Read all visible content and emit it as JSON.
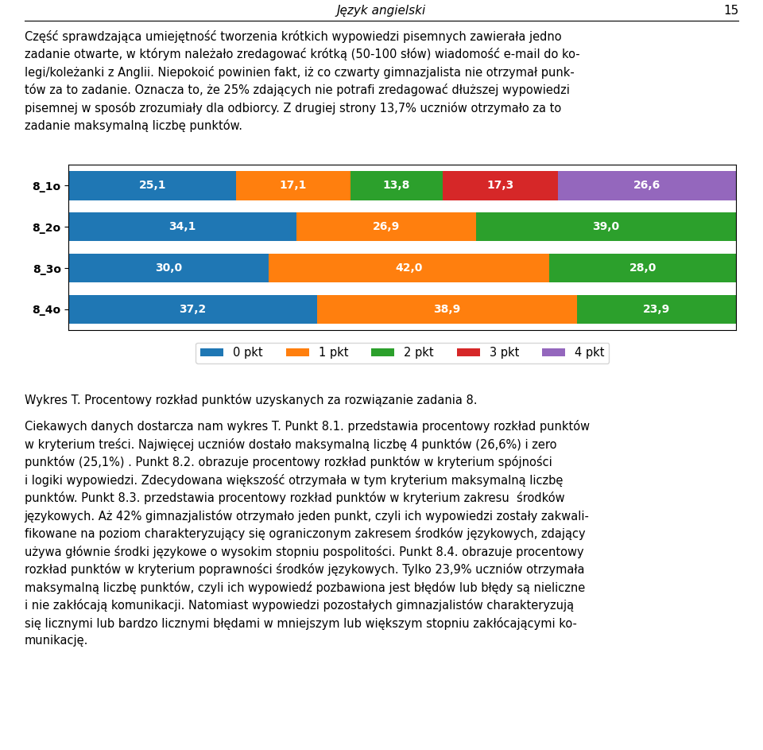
{
  "chart_data": {
    "type": "bar",
    "orientation": "horizontal",
    "stacked": true,
    "data_labels": true,
    "tick_labels": "y",
    "legend": "upper center",
    "grid": false,
    "title": "Wykres T. Procentowy rozkład punktów uzyskanych za rozwiązanie zadania 8.",
    "categories": [
      "8_1o",
      "8_2o",
      "8_3o",
      "8_4o"
    ],
    "xlim": [
      0,
      100
    ],
    "series": [
      {
        "name": "0 pkt",
        "values": [
          25.1,
          34.1,
          30.0,
          37.2
        ],
        "value_labels": [
          "25,1",
          "34,1",
          "30,0",
          "37,2"
        ]
      },
      {
        "name": "1 pkt",
        "values": [
          17.1,
          26.9,
          42.0,
          38.9
        ],
        "value_labels": [
          "17,1",
          "26,9",
          "42,0",
          "38,9"
        ]
      },
      {
        "name": "2 pkt",
        "values": [
          13.8,
          39.0,
          28.0,
          23.9
        ],
        "value_labels": [
          "13,8",
          "39,0",
          "28,0",
          "23,9"
        ]
      },
      {
        "name": "3 pkt",
        "values": [
          17.3,
          0.0,
          0.0,
          0.0
        ],
        "value_labels": [
          "17,3",
          null,
          null,
          null
        ]
      },
      {
        "name": "4 pkt",
        "values": [
          26.6,
          0.0,
          0.0,
          0.0
        ],
        "value_labels": [
          "26,6",
          null,
          null,
          null
        ]
      }
    ],
    "annotations": [
      "Język angielski",
      "15",
      "Część sprawdzająca umiejętność tworzenia krótkich wypowiedzi pisemnych zawierała jedno\nzadanie otwarte, w którym należało zredagować krótką (50-100 słów) wiadomość e-mail do ko-\nlegi/koleżanki z Anglii. Niepokoić powinien fakt, iż co czwarty gimnazjalista nie otrzymał punk-\ntów za to zadanie. Oznacza to, że 25% zdających nie potrafi zredagować dłuższej wypowiedzi\npisemnej w sposób zrozumiały dla odbiorcy. Z drugiej strony 13,7% uczniów otrzymało za to\nzadanie maksymalną liczbę punktów.",
      "Ciekawych danych dostarcza nam wykres T. Punkt 8.1. przedstawia procentowy rozkład punktów\nw kryterium treści. Najwięcej uczniów dostało maksymalną liczbę 4 punktów (26,6%) i zero\npunktów (25,1%) . Punkt 8.2. obrazuje procentowy rozkład punktów w kryterium spójności\ni logiki wypowiedzi. Zdecydowana większość otrzymała w tym kryterium maksymalną liczbę\npunktów. Punkt 8.3. przedstawia procentowy rozkład punktów w kryterium zakresu  środków\njęzykowych. Aż 42% gimnazjalistów otrzymało jeden punkt, czyli ich wypowiedzi zostały zakwali-\nfikowane na poziom charakteryzujący się ograniczonym zakresem środków językowych, zdający\nużywa głównie środki językowe o wysokim stopniu pospolitości. Punkt 8.4. obrazuje procentowy\nrozkład punktów w kryterium poprawności środków językowych. Tylko 23,9% uczniów otrzymała\nmaksymalną liczbę punktów, czyli ich wypowiedź pozbawiona jest błędów lub błędy są nieliczne\ni nie zakłócają komunikacji. Natomiast wypowiedzi pozostałych gimnazjalistów charakteryzują\nsię licznymi lub bardzo licznymi błędami w mniejszym lub większym stopniu zakłócającymi ko-\nmunikację."
    ]
  }
}
